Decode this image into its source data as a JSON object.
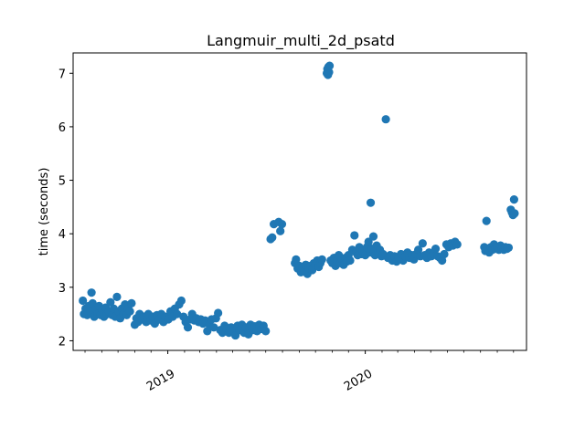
{
  "chart_data": {
    "type": "scatter",
    "title": "Langmuir_multi_2d_psatd",
    "xlabel": "",
    "ylabel": "time (seconds)",
    "ylim": [
      1.82,
      7.38
    ],
    "xlim": [
      "2018-07-10",
      "2020-10-25"
    ],
    "yticks": [
      2,
      3,
      4,
      5,
      6,
      7
    ],
    "xticks": [
      {
        "date": "2019-01-01",
        "label": "2019"
      },
      {
        "date": "2020-01-01",
        "label": "2020"
      }
    ],
    "x_minor_ticks": [
      "2018-08-01",
      "2018-09-01",
      "2018-10-01",
      "2018-11-01",
      "2018-12-01",
      "2019-02-01",
      "2019-03-01",
      "2019-04-01",
      "2019-05-01",
      "2019-06-01",
      "2019-07-01",
      "2019-08-01",
      "2019-09-01",
      "2019-10-01",
      "2019-11-01",
      "2019-12-01",
      "2020-02-01",
      "2020-03-01",
      "2020-04-01",
      "2020-05-01",
      "2020-06-01",
      "2020-07-01",
      "2020-08-01",
      "2020-09-01",
      "2020-10-01"
    ],
    "color": "#1f77b4",
    "grid": false,
    "series": [
      {
        "values": [
          [
            "2018-07-28",
            2.75
          ],
          [
            "2018-07-30",
            2.5
          ],
          [
            "2018-08-02",
            2.6
          ],
          [
            "2018-08-05",
            2.48
          ],
          [
            "2018-08-08",
            2.65
          ],
          [
            "2018-08-11",
            2.55
          ],
          [
            "2018-08-13",
            2.9
          ],
          [
            "2018-08-15",
            2.7
          ],
          [
            "2018-08-18",
            2.45
          ],
          [
            "2018-08-21",
            2.6
          ],
          [
            "2018-08-24",
            2.5
          ],
          [
            "2018-08-27",
            2.65
          ],
          [
            "2018-08-30",
            2.48
          ],
          [
            "2018-09-02",
            2.58
          ],
          [
            "2018-09-05",
            2.45
          ],
          [
            "2018-09-08",
            2.62
          ],
          [
            "2018-09-11",
            2.5
          ],
          [
            "2018-09-14",
            2.55
          ],
          [
            "2018-09-17",
            2.72
          ],
          [
            "2018-09-20",
            2.48
          ],
          [
            "2018-09-23",
            2.6
          ],
          [
            "2018-09-26",
            2.45
          ],
          [
            "2018-09-29",
            2.82
          ],
          [
            "2018-10-02",
            2.55
          ],
          [
            "2018-10-05",
            2.42
          ],
          [
            "2018-10-08",
            2.6
          ],
          [
            "2018-10-11",
            2.5
          ],
          [
            "2018-10-14",
            2.68
          ],
          [
            "2018-10-17",
            2.48
          ],
          [
            "2018-10-20",
            2.6
          ],
          [
            "2018-10-23",
            2.55
          ],
          [
            "2018-10-26",
            2.7
          ],
          [
            "2018-11-01",
            2.3
          ],
          [
            "2018-11-04",
            2.42
          ],
          [
            "2018-11-07",
            2.35
          ],
          [
            "2018-11-10",
            2.5
          ],
          [
            "2018-11-14",
            2.4
          ],
          [
            "2018-11-18",
            2.45
          ],
          [
            "2018-11-22",
            2.35
          ],
          [
            "2018-11-26",
            2.5
          ],
          [
            "2018-11-30",
            2.38
          ],
          [
            "2018-12-04",
            2.45
          ],
          [
            "2018-12-08",
            2.32
          ],
          [
            "2018-12-12",
            2.48
          ],
          [
            "2018-12-16",
            2.4
          ],
          [
            "2018-12-20",
            2.5
          ],
          [
            "2018-12-24",
            2.35
          ],
          [
            "2018-12-28",
            2.45
          ],
          [
            "2019-01-02",
            2.4
          ],
          [
            "2019-01-06",
            2.55
          ],
          [
            "2019-01-10",
            2.45
          ],
          [
            "2019-01-14",
            2.6
          ],
          [
            "2019-01-18",
            2.5
          ],
          [
            "2019-01-22",
            2.68
          ],
          [
            "2019-01-26",
            2.75
          ],
          [
            "2019-01-30",
            2.45
          ],
          [
            "2019-02-03",
            2.35
          ],
          [
            "2019-02-07",
            2.25
          ],
          [
            "2019-02-11",
            2.4
          ],
          [
            "2019-02-15",
            2.5
          ],
          [
            "2019-02-19",
            2.38
          ],
          [
            "2019-02-23",
            2.42
          ],
          [
            "2019-02-27",
            2.35
          ],
          [
            "2019-03-03",
            2.4
          ],
          [
            "2019-03-07",
            2.32
          ],
          [
            "2019-03-11",
            2.38
          ],
          [
            "2019-03-15",
            2.18
          ],
          [
            "2019-03-19",
            2.3
          ],
          [
            "2019-03-23",
            2.4
          ],
          [
            "2019-03-27",
            2.25
          ],
          [
            "2019-03-31",
            2.42
          ],
          [
            "2019-04-04",
            2.52
          ],
          [
            "2019-04-08",
            2.2
          ],
          [
            "2019-04-12",
            2.15
          ],
          [
            "2019-04-16",
            2.28
          ],
          [
            "2019-04-20",
            2.22
          ],
          [
            "2019-04-24",
            2.15
          ],
          [
            "2019-04-28",
            2.25
          ],
          [
            "2019-05-02",
            2.18
          ],
          [
            "2019-05-06",
            2.1
          ],
          [
            "2019-05-10",
            2.28
          ],
          [
            "2019-05-14",
            2.2
          ],
          [
            "2019-05-18",
            2.3
          ],
          [
            "2019-05-22",
            2.15
          ],
          [
            "2019-05-26",
            2.25
          ],
          [
            "2019-05-30",
            2.12
          ],
          [
            "2019-06-03",
            2.3
          ],
          [
            "2019-06-07",
            2.2
          ],
          [
            "2019-06-11",
            2.27
          ],
          [
            "2019-06-15",
            2.18
          ],
          [
            "2019-06-19",
            2.3
          ],
          [
            "2019-06-23",
            2.22
          ],
          [
            "2019-06-27",
            2.28
          ],
          [
            "2019-07-01",
            2.18
          ],
          [
            "2019-07-10",
            3.9
          ],
          [
            "2019-07-13",
            3.93
          ],
          [
            "2019-07-16",
            4.18
          ],
          [
            "2019-07-25",
            4.22
          ],
          [
            "2019-07-28",
            4.05
          ],
          [
            "2019-07-31",
            4.18
          ],
          [
            "2019-08-24",
            3.45
          ],
          [
            "2019-08-26",
            3.52
          ],
          [
            "2019-08-29",
            3.35
          ],
          [
            "2019-09-01",
            3.4
          ],
          [
            "2019-09-04",
            3.28
          ],
          [
            "2019-09-07",
            3.38
          ],
          [
            "2019-09-10",
            3.3
          ],
          [
            "2019-09-13",
            3.42
          ],
          [
            "2019-09-16",
            3.25
          ],
          [
            "2019-09-19",
            3.35
          ],
          [
            "2019-09-22",
            3.4
          ],
          [
            "2019-09-25",
            3.32
          ],
          [
            "2019-09-28",
            3.45
          ],
          [
            "2019-10-22",
            7.0
          ],
          [
            "2019-10-23",
            7.08
          ],
          [
            "2019-10-24",
            6.97
          ],
          [
            "2019-10-25",
            7.12
          ],
          [
            "2019-10-26",
            7.02
          ],
          [
            "2019-10-27",
            7.14
          ],
          [
            "2019-10-01",
            3.42
          ],
          [
            "2019-10-04",
            3.5
          ],
          [
            "2019-10-07",
            3.38
          ],
          [
            "2019-10-10",
            3.45
          ],
          [
            "2019-10-13",
            3.52
          ],
          [
            "2019-10-29",
            3.5
          ],
          [
            "2019-11-01",
            3.45
          ],
          [
            "2019-11-04",
            3.55
          ],
          [
            "2019-11-07",
            3.4
          ],
          [
            "2019-11-10",
            3.5
          ],
          [
            "2019-11-13",
            3.6
          ],
          [
            "2019-11-16",
            3.45
          ],
          [
            "2019-11-19",
            3.52
          ],
          [
            "2019-11-22",
            3.42
          ],
          [
            "2019-11-25",
            3.55
          ],
          [
            "2019-11-28",
            3.48
          ],
          [
            "2019-12-01",
            3.6
          ],
          [
            "2019-12-04",
            3.5
          ],
          [
            "2019-12-08",
            3.7
          ],
          [
            "2019-12-12",
            3.97
          ],
          [
            "2019-12-15",
            3.65
          ],
          [
            "2019-12-18",
            3.6
          ],
          [
            "2019-12-21",
            3.75
          ],
          [
            "2019-12-24",
            3.62
          ],
          [
            "2019-12-27",
            3.68
          ],
          [
            "2020-01-01",
            3.6
          ],
          [
            "2020-01-04",
            3.75
          ],
          [
            "2020-01-07",
            3.85
          ],
          [
            "2020-01-10",
            3.65
          ],
          [
            "2020-01-13",
            3.72
          ],
          [
            "2020-01-16",
            3.95
          ],
          [
            "2020-01-19",
            3.6
          ],
          [
            "2020-01-22",
            3.78
          ],
          [
            "2020-01-25",
            3.65
          ],
          [
            "2020-01-28",
            3.7
          ],
          [
            "2020-01-31",
            3.58
          ],
          [
            "2020-02-03",
            3.62
          ],
          [
            "2020-01-11",
            4.58
          ],
          [
            "2020-02-08",
            6.14
          ],
          [
            "2020-02-12",
            3.55
          ],
          [
            "2020-02-16",
            3.6
          ],
          [
            "2020-02-20",
            3.5
          ],
          [
            "2020-02-24",
            3.58
          ],
          [
            "2020-02-28",
            3.48
          ],
          [
            "2020-03-03",
            3.55
          ],
          [
            "2020-03-07",
            3.62
          ],
          [
            "2020-03-11",
            3.5
          ],
          [
            "2020-03-15",
            3.58
          ],
          [
            "2020-03-19",
            3.65
          ],
          [
            "2020-03-23",
            3.55
          ],
          [
            "2020-03-27",
            3.6
          ],
          [
            "2020-03-31",
            3.52
          ],
          [
            "2020-04-04",
            3.62
          ],
          [
            "2020-04-08",
            3.7
          ],
          [
            "2020-04-12",
            3.58
          ],
          [
            "2020-04-16",
            3.82
          ],
          [
            "2020-04-20",
            3.6
          ],
          [
            "2020-04-24",
            3.55
          ],
          [
            "2020-04-28",
            3.65
          ],
          [
            "2020-05-02",
            3.58
          ],
          [
            "2020-05-06",
            3.62
          ],
          [
            "2020-05-10",
            3.72
          ],
          [
            "2020-05-14",
            3.58
          ],
          [
            "2020-05-18",
            3.55
          ],
          [
            "2020-05-22",
            3.5
          ],
          [
            "2020-05-26",
            3.62
          ],
          [
            "2020-05-30",
            3.8
          ],
          [
            "2020-06-03",
            3.75
          ],
          [
            "2020-06-07",
            3.82
          ],
          [
            "2020-06-11",
            3.78
          ],
          [
            "2020-06-15",
            3.85
          ],
          [
            "2020-06-19",
            3.8
          ],
          [
            "2020-08-08",
            3.75
          ],
          [
            "2020-08-10",
            3.68
          ],
          [
            "2020-08-12",
            4.24
          ],
          [
            "2020-08-14",
            3.72
          ],
          [
            "2020-08-17",
            3.65
          ],
          [
            "2020-08-20",
            3.75
          ],
          [
            "2020-08-23",
            3.7
          ],
          [
            "2020-08-26",
            3.8
          ],
          [
            "2020-08-29",
            3.72
          ],
          [
            "2020-09-01",
            3.75
          ],
          [
            "2020-09-04",
            3.7
          ],
          [
            "2020-09-07",
            3.78
          ],
          [
            "2020-09-10",
            3.72
          ],
          [
            "2020-09-13",
            3.7
          ],
          [
            "2020-09-16",
            3.75
          ],
          [
            "2020-09-19",
            3.72
          ],
          [
            "2020-09-22",
            3.74
          ],
          [
            "2020-09-26",
            4.45
          ],
          [
            "2020-09-28",
            4.4
          ],
          [
            "2020-09-30",
            4.35
          ],
          [
            "2020-10-02",
            4.64
          ],
          [
            "2020-10-03",
            4.38
          ]
        ]
      }
    ]
  }
}
